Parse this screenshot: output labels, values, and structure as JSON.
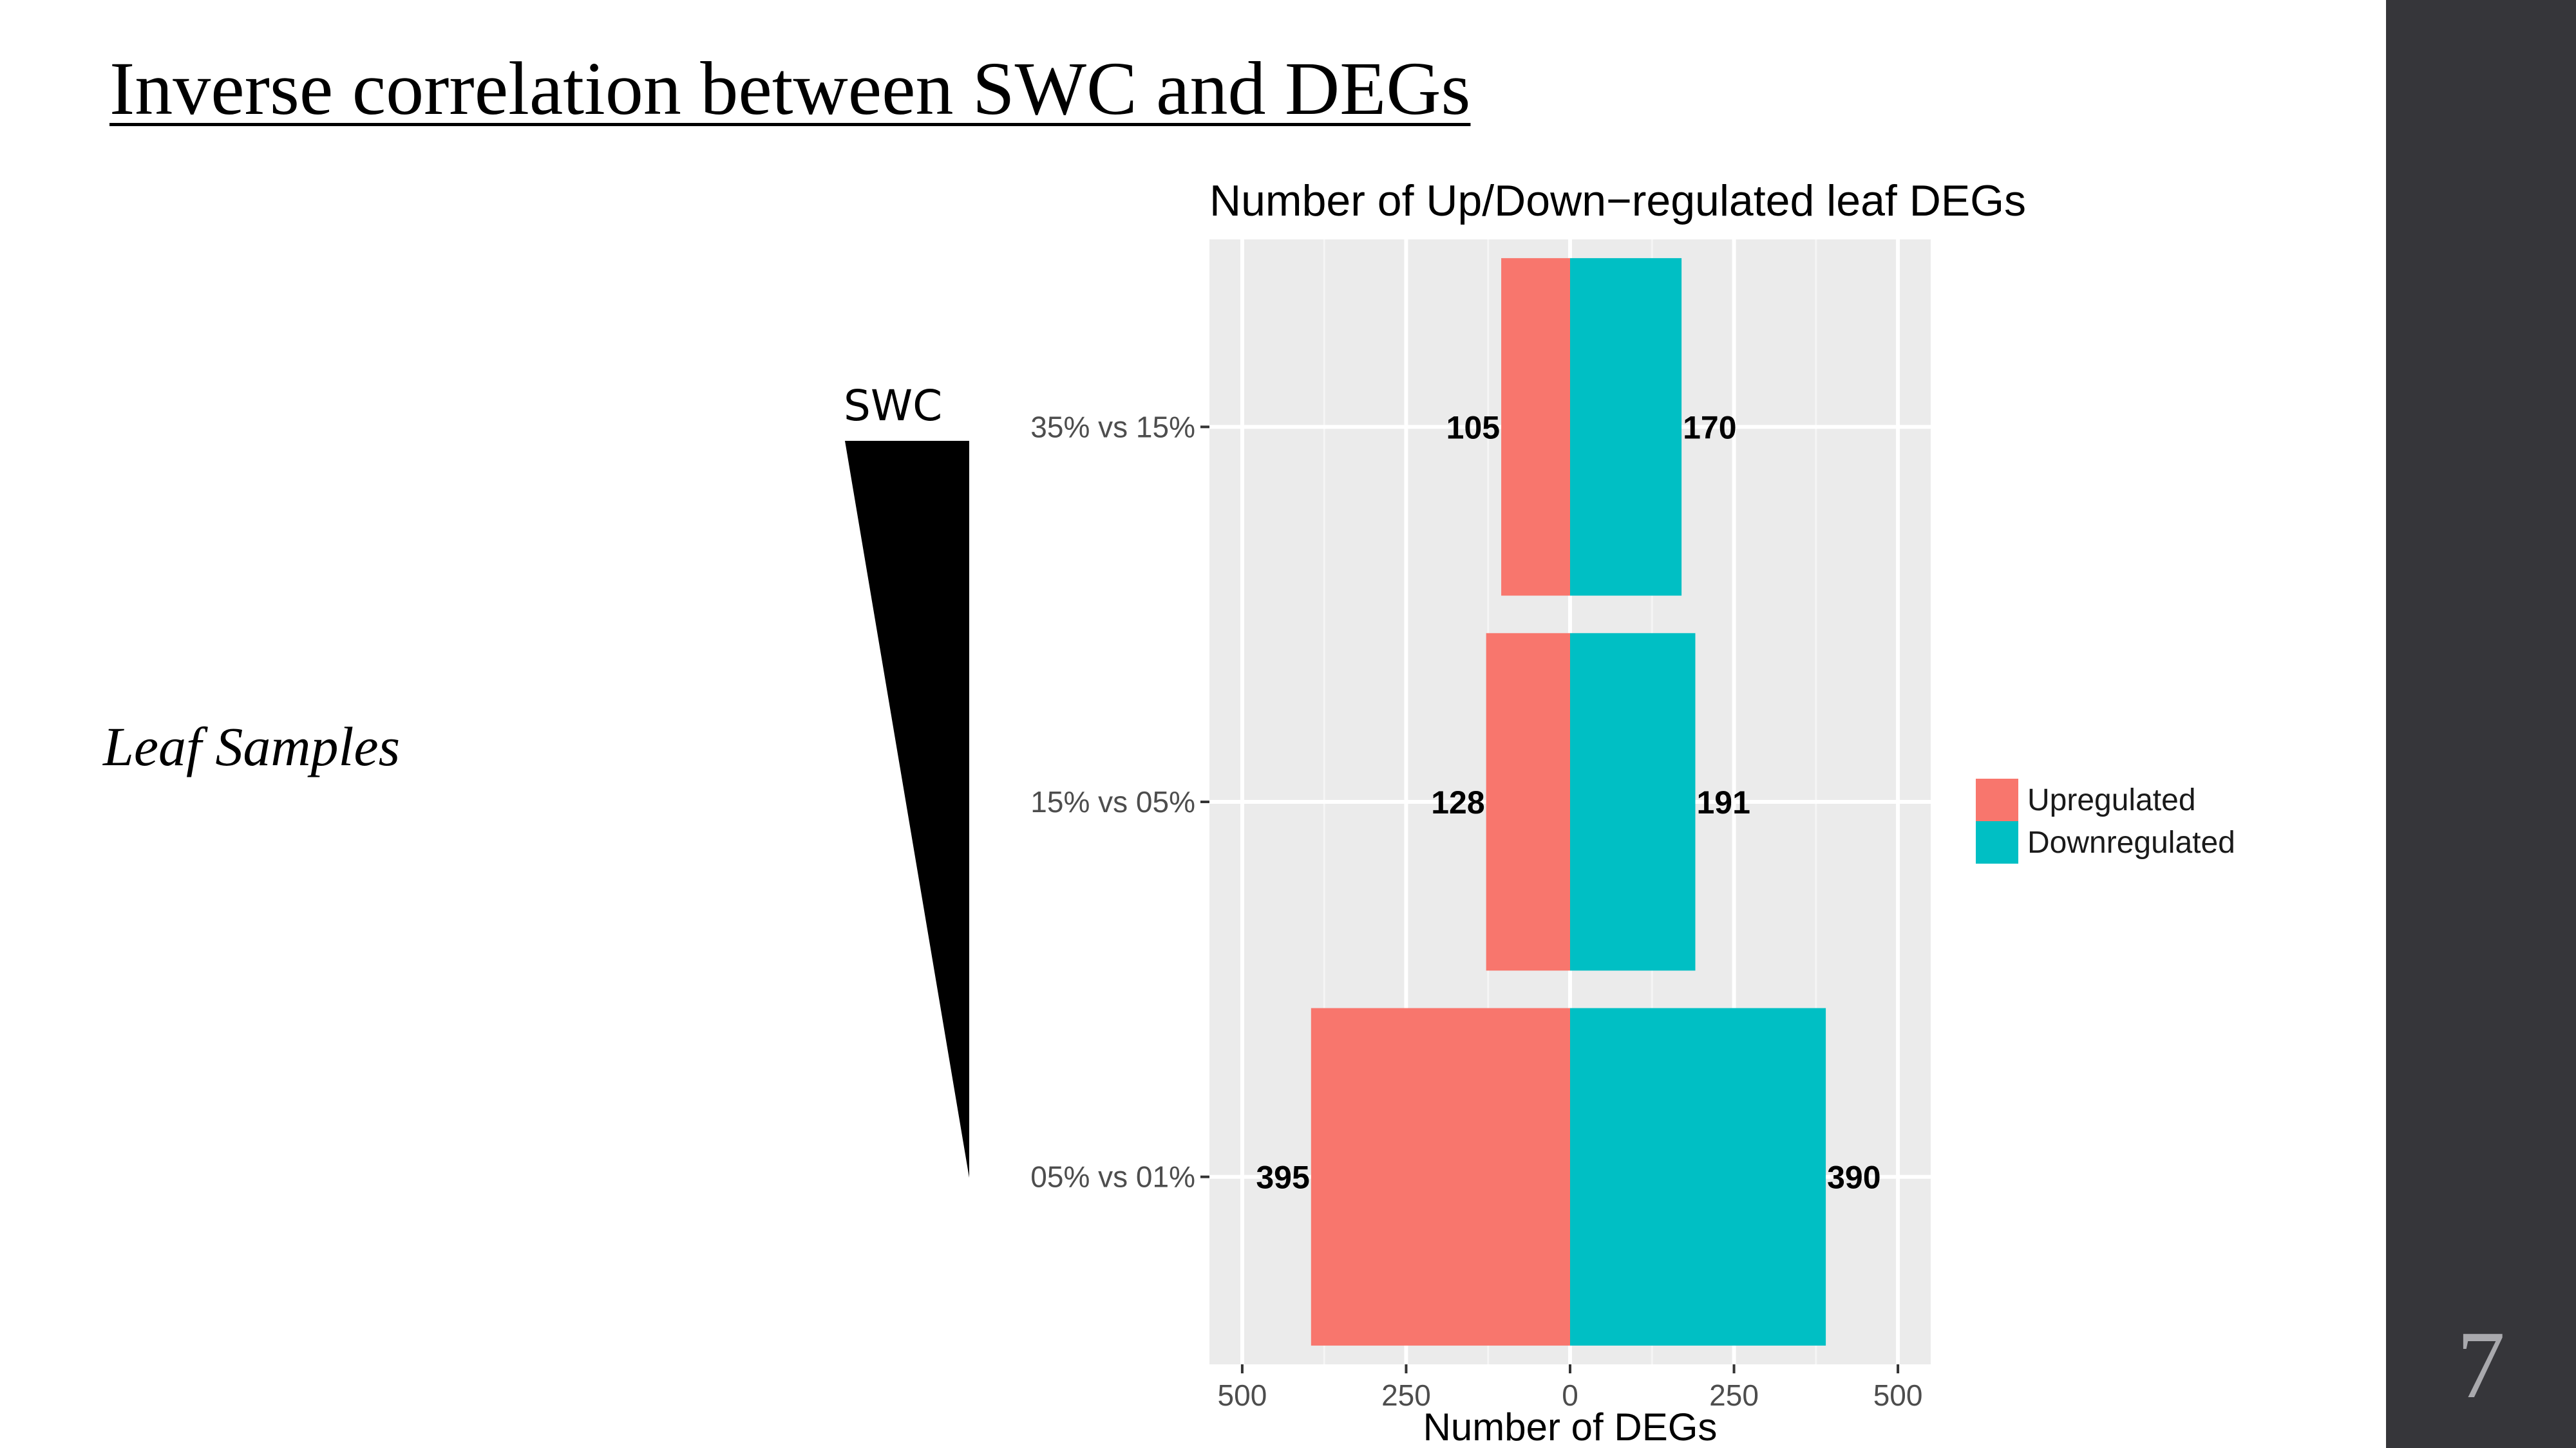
{
  "slide": {
    "title": "Inverse correlation between SWC and DEGs",
    "left_label": "Leaf Samples",
    "swc_label": "SWC",
    "page_number": "7"
  },
  "colors": {
    "upregulated": "#F8766D",
    "downregulated": "#00BFC4",
    "panel_bg": "#EBEBEB",
    "sidebar": "#36363A"
  },
  "chart_data": {
    "type": "bar",
    "orientation": "horizontal-diverging",
    "title": "Number of Up/Down−regulated leaf DEGs",
    "xlabel": "Number of DEGs",
    "ylabel": "",
    "categories": [
      "35% vs 15%",
      "15% vs 05%",
      "05% vs 01%"
    ],
    "series": [
      {
        "name": "Upregulated",
        "values": [
          105,
          128,
          395
        ],
        "direction": "left"
      },
      {
        "name": "Downregulated",
        "values": [
          170,
          191,
          390
        ],
        "direction": "right"
      }
    ],
    "xlim": [
      -550,
      550
    ],
    "xticks": [
      -500,
      -250,
      0,
      250,
      500
    ],
    "xtick_labels": [
      "500",
      "250",
      "0",
      "250",
      "500"
    ],
    "grid": true,
    "legend_position": "right"
  }
}
